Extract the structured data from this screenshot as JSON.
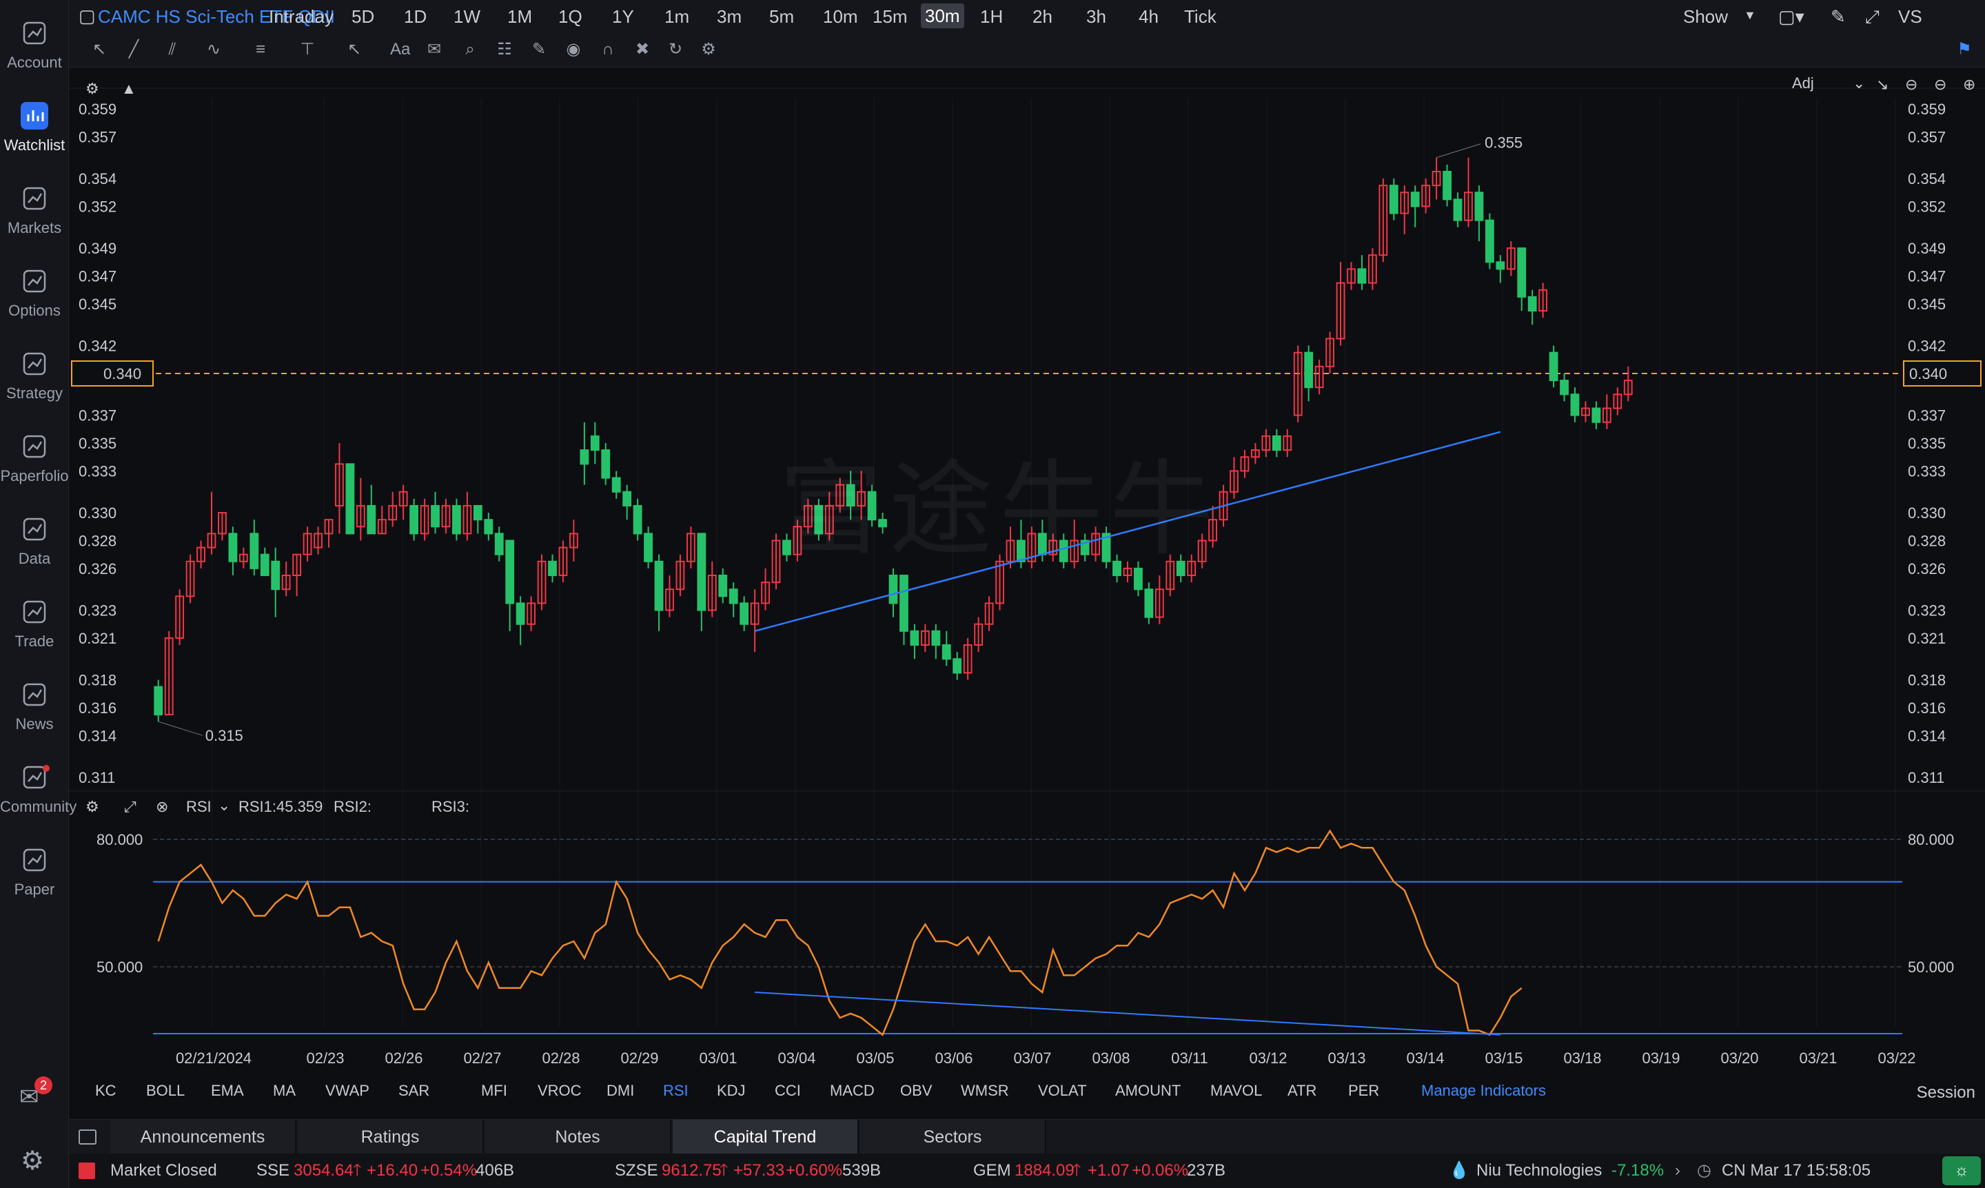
{
  "sidebar": {
    "items": [
      {
        "label": "Account",
        "icon": "account-icon"
      },
      {
        "label": "Watchlist",
        "icon": "watchlist-icon",
        "active": true
      },
      {
        "label": "Markets",
        "icon": "markets-icon"
      },
      {
        "label": "Options",
        "icon": "options-icon"
      },
      {
        "label": "Strategy",
        "icon": "strategy-icon"
      },
      {
        "label": "Paperfolio",
        "icon": "paperfolio-icon"
      },
      {
        "label": "Data",
        "icon": "data-icon"
      },
      {
        "label": "Trade",
        "icon": "trade-icon"
      },
      {
        "label": "News",
        "icon": "news-icon"
      },
      {
        "label": "Community",
        "icon": "community-icon"
      },
      {
        "label": "Paper",
        "icon": "paper-icon"
      }
    ],
    "notification_count": "2"
  },
  "topbar": {
    "title": "CAMC HS Sci-Tech ETF QDII",
    "periods": [
      "Intraday",
      "5D",
      "1D",
      "1W",
      "1M",
      "1Q",
      "1Y",
      "1m",
      "3m",
      "5m",
      "10m",
      "15m",
      "30m",
      "1H",
      "2h",
      "3h",
      "4h",
      "Tick"
    ],
    "selected": "30m",
    "show_label": "Show",
    "vs_label": "VS"
  },
  "chart_header": {
    "adj_label": "Adj"
  },
  "watermark": "富途牛牛",
  "price_axis": {
    "ticks": [
      "0.359",
      "0.357",
      "0.354",
      "0.352",
      "0.349",
      "0.347",
      "0.345",
      "0.342",
      "0.340",
      "0.337",
      "0.335",
      "0.333",
      "0.330",
      "0.328",
      "0.326",
      "0.323",
      "0.321",
      "0.318",
      "0.316",
      "0.314",
      "0.311"
    ],
    "current": "0.340",
    "high_label": "0.355",
    "low_label": "0.315"
  },
  "colors": {
    "up": "#f23645",
    "down": "#26c26a",
    "accent": "#3f8cff",
    "rsi": "#f08a24",
    "current": "#f5a623"
  },
  "rsi": {
    "name": "RSI",
    "rsi1": "RSI1:45.359",
    "rsi2": "RSI2:",
    "rsi3": "RSI3:",
    "levels": [
      "80.000",
      "50.000"
    ]
  },
  "x_axis": {
    "dates": [
      "02/21/2024",
      "02/23",
      "02/26",
      "02/27",
      "02/28",
      "02/29",
      "03/01",
      "03/04",
      "03/05",
      "03/06",
      "03/07",
      "03/08",
      "03/11",
      "03/12",
      "03/13",
      "03/14",
      "03/15",
      "03/18",
      "03/19",
      "03/20",
      "03/21",
      "03/22"
    ]
  },
  "indicator_tabs": [
    "KC",
    "BOLL",
    "EMA",
    "MA",
    "VWAP",
    "SAR",
    "MFI",
    "VROC",
    "DMI",
    "RSI",
    "KDJ",
    "CCI",
    "MACD",
    "OBV",
    "WMSR",
    "VOLAT",
    "AMOUNT",
    "MAVOL",
    "ATR",
    "PER"
  ],
  "manage_indicators": "Manage Indicators",
  "session_label": "Session",
  "bottom_tabs": [
    "Announcements",
    "Ratings",
    "Notes",
    "Capital Trend",
    "Sectors"
  ],
  "bottom_tab_selected": "Capital Trend",
  "status": {
    "market": "Market Closed",
    "sse": {
      "name": "SSE",
      "value": "3054.64",
      "change": "+16.40",
      "pct": "+0.54%",
      "vol": "406B"
    },
    "szse": {
      "name": "SZSE",
      "value": "9612.75",
      "change": "+57.33",
      "pct": "+0.60%",
      "vol": "539B"
    },
    "gem": {
      "name": "GEM",
      "value": "1884.09",
      "change": "+1.07",
      "pct": "+0.06%",
      "vol": "237B"
    },
    "ticker": {
      "name": "Niu Technologies",
      "pct": "-7.18%"
    },
    "time": "CN Mar 17 15:58:05"
  },
  "chart_data": {
    "type": "candlestick",
    "series": [
      {
        "o": 0.3175,
        "c": 0.3155,
        "h": 0.318,
        "l": 0.315
      },
      {
        "o": 0.3155,
        "c": 0.321,
        "h": 0.3215,
        "l": 0.3155
      },
      {
        "o": 0.321,
        "c": 0.324,
        "h": 0.3245,
        "l": 0.3205
      },
      {
        "o": 0.324,
        "c": 0.3265,
        "h": 0.327,
        "l": 0.3235
      },
      {
        "o": 0.3265,
        "c": 0.3275,
        "h": 0.328,
        "l": 0.326
      },
      {
        "o": 0.3275,
        "c": 0.3285,
        "h": 0.3315,
        "l": 0.327
      },
      {
        "o": 0.3285,
        "c": 0.33,
        "h": 0.33,
        "l": 0.328
      },
      {
        "o": 0.3285,
        "c": 0.3265,
        "h": 0.329,
        "l": 0.3255
      },
      {
        "o": 0.3265,
        "c": 0.327,
        "h": 0.3275,
        "l": 0.326
      },
      {
        "o": 0.3285,
        "c": 0.326,
        "h": 0.3295,
        "l": 0.3255
      },
      {
        "o": 0.327,
        "c": 0.3255,
        "h": 0.3275,
        "l": 0.3255
      },
      {
        "o": 0.3265,
        "c": 0.3245,
        "h": 0.3275,
        "l": 0.3225
      },
      {
        "o": 0.3245,
        "c": 0.3255,
        "h": 0.3265,
        "l": 0.324
      },
      {
        "o": 0.3255,
        "c": 0.327,
        "h": 0.327,
        "l": 0.324
      },
      {
        "o": 0.327,
        "c": 0.3285,
        "h": 0.329,
        "l": 0.3265
      },
      {
        "o": 0.3275,
        "c": 0.3285,
        "h": 0.329,
        "l": 0.327
      },
      {
        "o": 0.3285,
        "c": 0.3295,
        "h": 0.3295,
        "l": 0.3275
      },
      {
        "o": 0.3305,
        "c": 0.3335,
        "h": 0.335,
        "l": 0.3285
      },
      {
        "o": 0.3335,
        "c": 0.3285,
        "h": 0.3335,
        "l": 0.3285
      },
      {
        "o": 0.329,
        "c": 0.3305,
        "h": 0.3325,
        "l": 0.328
      },
      {
        "o": 0.3305,
        "c": 0.3285,
        "h": 0.332,
        "l": 0.3285
      },
      {
        "o": 0.3285,
        "c": 0.3295,
        "h": 0.3305,
        "l": 0.3285
      },
      {
        "o": 0.3295,
        "c": 0.3305,
        "h": 0.3315,
        "l": 0.329
      },
      {
        "o": 0.3305,
        "c": 0.3315,
        "h": 0.332,
        "l": 0.3295
      },
      {
        "o": 0.3305,
        "c": 0.3285,
        "h": 0.331,
        "l": 0.328
      },
      {
        "o": 0.3285,
        "c": 0.3305,
        "h": 0.331,
        "l": 0.328
      },
      {
        "o": 0.3305,
        "c": 0.329,
        "h": 0.3315,
        "l": 0.3285
      },
      {
        "o": 0.329,
        "c": 0.3305,
        "h": 0.331,
        "l": 0.3285
      },
      {
        "o": 0.3305,
        "c": 0.3285,
        "h": 0.331,
        "l": 0.328
      },
      {
        "o": 0.3285,
        "c": 0.3305,
        "h": 0.3315,
        "l": 0.328
      },
      {
        "o": 0.3305,
        "c": 0.3295,
        "h": 0.3305,
        "l": 0.3285
      },
      {
        "o": 0.3295,
        "c": 0.3285,
        "h": 0.33,
        "l": 0.328
      },
      {
        "o": 0.3285,
        "c": 0.327,
        "h": 0.329,
        "l": 0.3265
      },
      {
        "o": 0.328,
        "c": 0.3235,
        "h": 0.328,
        "l": 0.3215
      },
      {
        "o": 0.3235,
        "c": 0.322,
        "h": 0.324,
        "l": 0.3205
      },
      {
        "o": 0.322,
        "c": 0.3235,
        "h": 0.324,
        "l": 0.3215
      },
      {
        "o": 0.3235,
        "c": 0.3265,
        "h": 0.327,
        "l": 0.323
      },
      {
        "o": 0.3265,
        "c": 0.3255,
        "h": 0.327,
        "l": 0.325
      },
      {
        "o": 0.3255,
        "c": 0.3275,
        "h": 0.328,
        "l": 0.325
      },
      {
        "o": 0.3275,
        "c": 0.3285,
        "h": 0.3295,
        "l": 0.3265
      },
      {
        "o": 0.3345,
        "c": 0.3335,
        "h": 0.3365,
        "l": 0.332
      },
      {
        "o": 0.3355,
        "c": 0.3345,
        "h": 0.3365,
        "l": 0.3335
      },
      {
        "o": 0.3345,
        "c": 0.3325,
        "h": 0.335,
        "l": 0.332
      },
      {
        "o": 0.3325,
        "c": 0.3315,
        "h": 0.333,
        "l": 0.331
      },
      {
        "o": 0.3315,
        "c": 0.3305,
        "h": 0.332,
        "l": 0.3295
      },
      {
        "o": 0.3305,
        "c": 0.3285,
        "h": 0.331,
        "l": 0.328
      },
      {
        "o": 0.3285,
        "c": 0.3265,
        "h": 0.329,
        "l": 0.326
      },
      {
        "o": 0.3265,
        "c": 0.323,
        "h": 0.327,
        "l": 0.3215
      },
      {
        "o": 0.323,
        "c": 0.3245,
        "h": 0.3255,
        "l": 0.3225
      },
      {
        "o": 0.3245,
        "c": 0.3265,
        "h": 0.327,
        "l": 0.324
      },
      {
        "o": 0.3265,
        "c": 0.3285,
        "h": 0.329,
        "l": 0.326
      },
      {
        "o": 0.3285,
        "c": 0.323,
        "h": 0.3285,
        "l": 0.3215
      },
      {
        "o": 0.323,
        "c": 0.3255,
        "h": 0.3265,
        "l": 0.3225
      },
      {
        "o": 0.3255,
        "c": 0.324,
        "h": 0.326,
        "l": 0.3235
      },
      {
        "o": 0.3245,
        "c": 0.3235,
        "h": 0.325,
        "l": 0.3225
      },
      {
        "o": 0.3235,
        "c": 0.322,
        "h": 0.324,
        "l": 0.3215
      },
      {
        "o": 0.322,
        "c": 0.3235,
        "h": 0.3245,
        "l": 0.32
      },
      {
        "o": 0.3235,
        "c": 0.325,
        "h": 0.326,
        "l": 0.323
      },
      {
        "o": 0.325,
        "c": 0.328,
        "h": 0.3285,
        "l": 0.3245
      },
      {
        "o": 0.328,
        "c": 0.327,
        "h": 0.3285,
        "l": 0.3265
      },
      {
        "o": 0.327,
        "c": 0.329,
        "h": 0.3295,
        "l": 0.3265
      },
      {
        "o": 0.329,
        "c": 0.3305,
        "h": 0.331,
        "l": 0.3285
      },
      {
        "o": 0.3305,
        "c": 0.3285,
        "h": 0.331,
        "l": 0.328
      },
      {
        "o": 0.3285,
        "c": 0.3305,
        "h": 0.3315,
        "l": 0.328
      },
      {
        "o": 0.3305,
        "c": 0.332,
        "h": 0.3325,
        "l": 0.33
      },
      {
        "o": 0.332,
        "c": 0.3305,
        "h": 0.333,
        "l": 0.3295
      },
      {
        "o": 0.3305,
        "c": 0.3315,
        "h": 0.333,
        "l": 0.3295
      },
      {
        "o": 0.3315,
        "c": 0.3295,
        "h": 0.332,
        "l": 0.329
      },
      {
        "o": 0.3295,
        "c": 0.329,
        "h": 0.33,
        "l": 0.3285
      },
      {
        "o": 0.3255,
        "c": 0.3235,
        "h": 0.326,
        "l": 0.3225
      },
      {
        "o": 0.3255,
        "c": 0.3215,
        "h": 0.3255,
        "l": 0.3205
      },
      {
        "o": 0.3215,
        "c": 0.3205,
        "h": 0.322,
        "l": 0.3195
      },
      {
        "o": 0.3205,
        "c": 0.3215,
        "h": 0.322,
        "l": 0.32
      },
      {
        "o": 0.3215,
        "c": 0.3205,
        "h": 0.322,
        "l": 0.3195
      },
      {
        "o": 0.3205,
        "c": 0.3195,
        "h": 0.3215,
        "l": 0.319
      },
      {
        "o": 0.3195,
        "c": 0.3185,
        "h": 0.32,
        "l": 0.318
      },
      {
        "o": 0.3185,
        "c": 0.3205,
        "h": 0.321,
        "l": 0.318
      },
      {
        "o": 0.3205,
        "c": 0.322,
        "h": 0.3225,
        "l": 0.32
      },
      {
        "o": 0.322,
        "c": 0.3235,
        "h": 0.324,
        "l": 0.3215
      },
      {
        "o": 0.3235,
        "c": 0.3265,
        "h": 0.327,
        "l": 0.323
      },
      {
        "o": 0.3265,
        "c": 0.328,
        "h": 0.329,
        "l": 0.326
      },
      {
        "o": 0.328,
        "c": 0.3265,
        "h": 0.3295,
        "l": 0.326
      },
      {
        "o": 0.3265,
        "c": 0.3285,
        "h": 0.329,
        "l": 0.326
      },
      {
        "o": 0.3285,
        "c": 0.327,
        "h": 0.3295,
        "l": 0.3265
      },
      {
        "o": 0.327,
        "c": 0.328,
        "h": 0.3285,
        "l": 0.3265
      },
      {
        "o": 0.328,
        "c": 0.3265,
        "h": 0.3285,
        "l": 0.326
      },
      {
        "o": 0.3265,
        "c": 0.328,
        "h": 0.3295,
        "l": 0.326
      },
      {
        "o": 0.328,
        "c": 0.327,
        "h": 0.3285,
        "l": 0.3265
      },
      {
        "o": 0.327,
        "c": 0.3285,
        "h": 0.329,
        "l": 0.3265
      },
      {
        "o": 0.3285,
        "c": 0.3265,
        "h": 0.329,
        "l": 0.326
      },
      {
        "o": 0.3265,
        "c": 0.3255,
        "h": 0.327,
        "l": 0.325
      },
      {
        "o": 0.3255,
        "c": 0.326,
        "h": 0.3265,
        "l": 0.325
      },
      {
        "o": 0.326,
        "c": 0.3245,
        "h": 0.3265,
        "l": 0.324
      },
      {
        "o": 0.3245,
        "c": 0.3225,
        "h": 0.325,
        "l": 0.322
      },
      {
        "o": 0.3225,
        "c": 0.3245,
        "h": 0.3255,
        "l": 0.322
      },
      {
        "o": 0.3245,
        "c": 0.3265,
        "h": 0.327,
        "l": 0.324
      },
      {
        "o": 0.3265,
        "c": 0.3255,
        "h": 0.327,
        "l": 0.325
      },
      {
        "o": 0.3255,
        "c": 0.3265,
        "h": 0.327,
        "l": 0.325
      },
      {
        "o": 0.3265,
        "c": 0.328,
        "h": 0.3285,
        "l": 0.326
      },
      {
        "o": 0.328,
        "c": 0.3295,
        "h": 0.3305,
        "l": 0.3275
      },
      {
        "o": 0.3295,
        "c": 0.3315,
        "h": 0.332,
        "l": 0.329
      },
      {
        "o": 0.3315,
        "c": 0.333,
        "h": 0.334,
        "l": 0.331
      },
      {
        "o": 0.333,
        "c": 0.334,
        "h": 0.3345,
        "l": 0.3325
      },
      {
        "o": 0.334,
        "c": 0.3345,
        "h": 0.335,
        "l": 0.3335
      },
      {
        "o": 0.3345,
        "c": 0.3355,
        "h": 0.336,
        "l": 0.334
      },
      {
        "o": 0.3355,
        "c": 0.3345,
        "h": 0.336,
        "l": 0.334
      },
      {
        "o": 0.3345,
        "c": 0.3355,
        "h": 0.336,
        "l": 0.334
      },
      {
        "o": 0.337,
        "c": 0.3415,
        "h": 0.342,
        "l": 0.3365
      },
      {
        "o": 0.3415,
        "c": 0.339,
        "h": 0.342,
        "l": 0.338
      },
      {
        "o": 0.339,
        "c": 0.3405,
        "h": 0.341,
        "l": 0.3385
      },
      {
        "o": 0.3405,
        "c": 0.3425,
        "h": 0.343,
        "l": 0.34
      },
      {
        "o": 0.3425,
        "c": 0.3465,
        "h": 0.348,
        "l": 0.342
      },
      {
        "o": 0.3465,
        "c": 0.3475,
        "h": 0.348,
        "l": 0.346
      },
      {
        "o": 0.3475,
        "c": 0.3465,
        "h": 0.3485,
        "l": 0.346
      },
      {
        "o": 0.3465,
        "c": 0.3485,
        "h": 0.349,
        "l": 0.346
      },
      {
        "o": 0.3485,
        "c": 0.3535,
        "h": 0.354,
        "l": 0.348
      },
      {
        "o": 0.3535,
        "c": 0.3515,
        "h": 0.354,
        "l": 0.351
      },
      {
        "o": 0.3515,
        "c": 0.353,
        "h": 0.3535,
        "l": 0.35
      },
      {
        "o": 0.353,
        "c": 0.352,
        "h": 0.3535,
        "l": 0.3505
      },
      {
        "o": 0.352,
        "c": 0.3535,
        "h": 0.354,
        "l": 0.3515
      },
      {
        "o": 0.3535,
        "c": 0.3545,
        "h": 0.3555,
        "l": 0.3525
      },
      {
        "o": 0.3545,
        "c": 0.3525,
        "h": 0.355,
        "l": 0.352
      },
      {
        "o": 0.3525,
        "c": 0.351,
        "h": 0.353,
        "l": 0.3505
      },
      {
        "o": 0.351,
        "c": 0.353,
        "h": 0.3555,
        "l": 0.3505
      },
      {
        "o": 0.353,
        "c": 0.351,
        "h": 0.3535,
        "l": 0.3495
      },
      {
        "o": 0.351,
        "c": 0.348,
        "h": 0.3515,
        "l": 0.3475
      },
      {
        "o": 0.348,
        "c": 0.3475,
        "h": 0.3485,
        "l": 0.3465
      },
      {
        "o": 0.3475,
        "c": 0.349,
        "h": 0.3495,
        "l": 0.347
      },
      {
        "o": 0.349,
        "c": 0.3455,
        "h": 0.349,
        "l": 0.3445
      },
      {
        "o": 0.3455,
        "c": 0.3445,
        "h": 0.346,
        "l": 0.3435
      },
      {
        "o": 0.3445,
        "c": 0.346,
        "h": 0.3465,
        "l": 0.344
      },
      {
        "o": 0.3415,
        "c": 0.3395,
        "h": 0.342,
        "l": 0.339
      },
      {
        "o": 0.3395,
        "c": 0.3385,
        "h": 0.34,
        "l": 0.338
      },
      {
        "o": 0.3385,
        "c": 0.337,
        "h": 0.339,
        "l": 0.3365
      },
      {
        "o": 0.337,
        "c": 0.3375,
        "h": 0.338,
        "l": 0.3365
      },
      {
        "o": 0.3375,
        "c": 0.3365,
        "h": 0.338,
        "l": 0.336
      },
      {
        "o": 0.3365,
        "c": 0.3375,
        "h": 0.3385,
        "l": 0.336
      },
      {
        "o": 0.3375,
        "c": 0.3385,
        "h": 0.339,
        "l": 0.337
      },
      {
        "o": 0.3385,
        "c": 0.3395,
        "h": 0.3405,
        "l": 0.338
      }
    ],
    "rsi1": [
      56,
      64,
      70,
      72,
      74,
      70,
      65,
      68,
      66,
      62,
      62,
      65,
      67,
      66,
      70,
      62,
      62,
      64,
      64,
      57,
      58,
      56,
      55,
      46,
      40,
      40,
      44,
      51,
      56,
      49,
      45,
      51,
      45,
      45,
      45,
      49,
      48,
      52,
      55,
      56,
      52,
      58,
      60,
      70,
      66,
      58,
      54,
      51,
      47,
      48,
      47,
      45,
      51,
      55,
      57,
      60,
      58,
      57,
      61,
      61,
      57,
      55,
      50,
      42,
      38,
      39,
      38,
      36,
      34,
      40,
      48,
      56,
      60,
      56,
      56,
      55,
      57,
      53,
      57,
      53,
      49,
      49,
      46,
      44,
      54,
      48,
      48,
      50,
      52,
      53,
      55,
      55,
      58,
      57,
      60,
      65,
      66,
      67,
      66,
      68,
      64,
      72,
      68,
      72,
      78,
      77,
      78,
      77,
      78,
      78,
      82,
      78,
      79,
      78,
      78,
      74,
      70,
      68,
      62,
      55,
      50,
      48,
      46,
      35,
      35,
      34,
      38,
      43,
      45
    ],
    "ylim": [
      0.311,
      0.359
    ],
    "rsi_levels": [
      80,
      50
    ],
    "dates": [
      "02/21/2024",
      "02/23",
      "02/26",
      "02/27",
      "02/28",
      "02/29",
      "03/01",
      "03/04",
      "03/05",
      "03/06",
      "03/07",
      "03/08",
      "03/11",
      "03/12",
      "03/13",
      "03/14",
      "03/15",
      "03/18",
      "03/19",
      "03/20",
      "03/21",
      "03/22"
    ]
  }
}
